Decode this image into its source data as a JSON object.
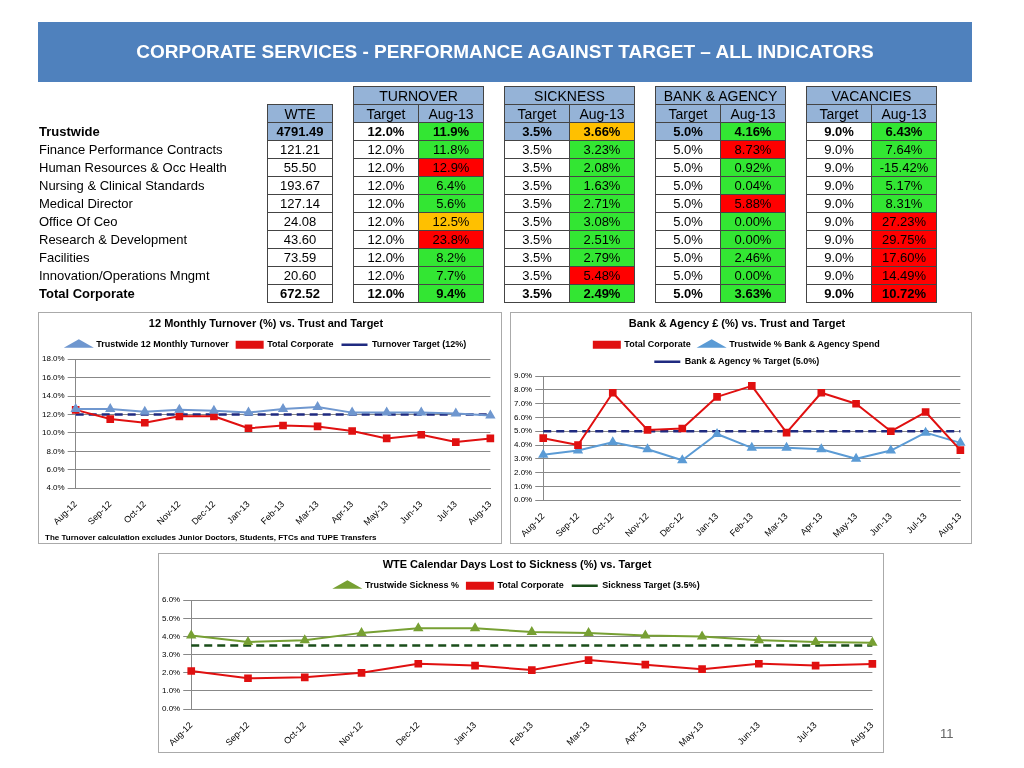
{
  "chart_data": [
    {
      "type": "heatmap",
      "title": "CORPORATE SERVICES -  PERFORMANCE AGAINST TARGET – ALL INDICATORS",
      "categories": [
        "WTE",
        "Target",
        "Aug-13",
        "Target",
        "Aug-13",
        "Target",
        "Aug-13",
        "Target",
        "Aug-13"
      ],
      "y_categories": [
        "Trustwide",
        "Finance Performance Contracts",
        "Human Resources & Occ Health",
        "Nursing & Clinical Standards",
        "Medical Director",
        "Office Of Ceo",
        "Research & Development",
        "Facilities",
        "Innovation/Operations Mngmt",
        "Total Corporate"
      ],
      "cells": [
        [
          4791.49,
          12.0,
          11.9,
          3.5,
          3.66,
          5.0,
          4.16,
          9.0,
          6.43
        ],
        [
          121.21,
          12.0,
          11.8,
          3.5,
          3.23,
          5.0,
          8.73,
          9.0,
          7.64
        ],
        [
          55.5,
          12.0,
          12.9,
          3.5,
          2.08,
          5.0,
          0.92,
          9.0,
          -15.42
        ],
        [
          193.67,
          12.0,
          6.4,
          3.5,
          1.63,
          5.0,
          0.04,
          9.0,
          5.17
        ],
        [
          127.14,
          12.0,
          5.6,
          3.5,
          2.71,
          5.0,
          5.88,
          9.0,
          8.31
        ],
        [
          24.08,
          12.0,
          12.5,
          3.5,
          3.08,
          5.0,
          0.0,
          9.0,
          27.23
        ],
        [
          43.6,
          12.0,
          23.8,
          3.5,
          2.51,
          5.0,
          0.0,
          9.0,
          29.75
        ],
        [
          73.59,
          12.0,
          8.2,
          3.5,
          2.79,
          5.0,
          2.46,
          9.0,
          17.6
        ],
        [
          20.6,
          12.0,
          7.7,
          3.5,
          5.48,
          5.0,
          0.0,
          9.0,
          14.49
        ],
        [
          672.52,
          12.0,
          9.4,
          3.5,
          2.49,
          5.0,
          3.63,
          9.0,
          10.72
        ]
      ],
      "cell_labels": [
        [
          "4791.49",
          "12.0%",
          "11.9%",
          "3.5%",
          "3.66%",
          "5.0%",
          "4.16%",
          "9.0%",
          "6.43%"
        ],
        [
          "121.21",
          "12.0%",
          "11.8%",
          "3.5%",
          "3.23%",
          "5.0%",
          "8.73%",
          "9.0%",
          "7.64%"
        ],
        [
          "55.50",
          "12.0%",
          "12.9%",
          "3.5%",
          "2.08%",
          "5.0%",
          "0.92%",
          "9.0%",
          "-15.42%"
        ],
        [
          "193.67",
          "12.0%",
          "6.4%",
          "3.5%",
          "1.63%",
          "5.0%",
          "0.04%",
          "9.0%",
          "5.17%"
        ],
        [
          "127.14",
          "12.0%",
          "5.6%",
          "3.5%",
          "2.71%",
          "5.0%",
          "5.88%",
          "9.0%",
          "8.31%"
        ],
        [
          "24.08",
          "12.0%",
          "12.5%",
          "3.5%",
          "3.08%",
          "5.0%",
          "0.00%",
          "9.0%",
          "27.23%"
        ],
        [
          "43.60",
          "12.0%",
          "23.8%",
          "3.5%",
          "2.51%",
          "5.0%",
          "0.00%",
          "9.0%",
          "29.75%"
        ],
        [
          "73.59",
          "12.0%",
          "8.2%",
          "3.5%",
          "2.79%",
          "5.0%",
          "2.46%",
          "9.0%",
          "17.60%"
        ],
        [
          "20.60",
          "12.0%",
          "7.7%",
          "3.5%",
          "5.48%",
          "5.0%",
          "0.00%",
          "9.0%",
          "14.49%"
        ],
        [
          "672.52",
          "12.0%",
          "9.4%",
          "3.5%",
          "2.49%",
          "5.0%",
          "3.63%",
          "9.0%",
          "10.72%"
        ]
      ],
      "colors": [
        [
          "#95b3d7",
          null,
          "#33e633",
          "#95b3d7",
          "#ffc000",
          "#95b3d7",
          "#33e633",
          null,
          "#33e633"
        ],
        [
          null,
          null,
          "#33e633",
          null,
          "#33e633",
          null,
          "#ff0000",
          null,
          "#33e633"
        ],
        [
          null,
          null,
          "#ff0000",
          null,
          "#33e633",
          null,
          "#33e633",
          null,
          "#33e633"
        ],
        [
          null,
          null,
          "#33e633",
          null,
          "#33e633",
          null,
          "#33e633",
          null,
          "#33e633"
        ],
        [
          null,
          null,
          "#33e633",
          null,
          "#33e633",
          null,
          "#ff0000",
          null,
          "#33e633"
        ],
        [
          null,
          null,
          "#ffc000",
          null,
          "#33e633",
          null,
          "#33e633",
          null,
          "#ff0000"
        ],
        [
          null,
          null,
          "#ff0000",
          null,
          "#33e633",
          null,
          "#33e633",
          null,
          "#ff0000"
        ],
        [
          null,
          null,
          "#33e633",
          null,
          "#33e633",
          null,
          "#33e633",
          null,
          "#ff0000"
        ],
        [
          null,
          null,
          "#33e633",
          null,
          "#ff0000",
          null,
          "#33e633",
          null,
          "#ff0000"
        ],
        [
          null,
          null,
          "#33e633",
          null,
          "#33e633",
          null,
          "#33e633",
          null,
          "#ff0000"
        ]
      ],
      "annotations": [
        "TURNOVER",
        "SICKNESS",
        "BANK & AGENCY",
        "VACANCIES",
        "11"
      ]
    },
    {
      "type": "line",
      "title": "12 Monthly Turnover (%) vs. Trust and Target",
      "categories": [
        "Aug-12",
        "Sep-12",
        "Oct-12",
        "Nov-12",
        "Dec-12",
        "Jan-13",
        "Feb-13",
        "Mar-13",
        "Apr-13",
        "May-13",
        "Jun-13",
        "Jul-13",
        "Aug-13"
      ],
      "series": [
        {
          "name": "Turnover Target (12%)",
          "color": "#1f2a80",
          "marker": "none",
          "line_style": "dashed",
          "values": [
            12,
            12,
            12,
            12,
            12,
            12,
            12,
            12,
            12,
            12,
            12,
            12,
            12
          ]
        },
        {
          "name": "Total Corporate",
          "color": "#e01010",
          "marker": "square",
          "values": [
            12.5,
            11.5,
            11.1,
            11.8,
            11.8,
            10.5,
            10.8,
            10.7,
            10.2,
            9.4,
            9.8,
            9.0,
            9.4
          ]
        },
        {
          "name": "Trustwide 12 Monthly Turnover",
          "color": "#6f97cf",
          "marker": "triangle",
          "values": [
            12.6,
            12.6,
            12.3,
            12.5,
            12.4,
            12.2,
            12.6,
            12.8,
            12.2,
            12.2,
            12.2,
            12.1,
            11.9
          ]
        }
      ],
      "ylim": [
        4,
        18
      ],
      "yticks": [
        {
          "value": 4,
          "label": "4.0%"
        },
        {
          "value": 6,
          "label": "6.0%"
        },
        {
          "value": 8,
          "label": "8.0%"
        },
        {
          "value": 10,
          "label": "10.0%"
        },
        {
          "value": 12,
          "label": "12.0%"
        },
        {
          "value": 14,
          "label": "14.0%"
        },
        {
          "value": 16,
          "label": "16.0%"
        },
        {
          "value": 18,
          "label": "18.0%"
        }
      ],
      "grid": "y",
      "legend": "top",
      "annotations": [
        "The Turnover calculation excludes Junior Doctors, Students, FTCs and TUPE Transfers"
      ]
    },
    {
      "type": "line",
      "title": "Bank & Agency £ (%) vs. Trust and Target",
      "categories": [
        "Aug-12",
        "Sep-12",
        "Oct-12",
        "Nov-12",
        "Dec-12",
        "Jan-13",
        "Feb-13",
        "Mar-13",
        "Apr-13",
        "May-13",
        "Jun-13",
        "Jul-13",
        "Aug-13"
      ],
      "series": [
        {
          "name": "Bank & Agency % Target (5.0%)",
          "color": "#1f2a80",
          "marker": "none",
          "line_style": "dashed",
          "values": [
            5,
            5,
            5,
            5,
            5,
            5,
            5,
            5,
            5,
            5,
            5,
            5,
            5
          ]
        },
        {
          "name": "Trustwide % Bank & Agency Spend",
          "color": "#5b9bd5",
          "marker": "triangle",
          "values": [
            3.3,
            3.6,
            4.2,
            3.7,
            2.9,
            4.8,
            3.8,
            3.8,
            3.7,
            3.0,
            3.6,
            4.9,
            4.16
          ]
        },
        {
          "name": "Total Corporate",
          "color": "#e01010",
          "marker": "square",
          "values": [
            4.5,
            4.0,
            7.8,
            5.1,
            5.2,
            7.5,
            8.3,
            4.9,
            7.8,
            7.0,
            5.0,
            6.4,
            3.63
          ]
        }
      ],
      "ylim": [
        0,
        9
      ],
      "yticks": [
        {
          "value": 0,
          "label": "0.0%"
        },
        {
          "value": 1,
          "label": "1.0%"
        },
        {
          "value": 2,
          "label": "2.0%"
        },
        {
          "value": 3,
          "label": "3.0%"
        },
        {
          "value": 4,
          "label": "4.0%"
        },
        {
          "value": 5,
          "label": "5.0%"
        },
        {
          "value": 6,
          "label": "6.0%"
        },
        {
          "value": 7,
          "label": "7.0%"
        },
        {
          "value": 8,
          "label": "8.0%"
        },
        {
          "value": 9,
          "label": "9.0%"
        }
      ],
      "grid": "y",
      "legend": "top"
    },
    {
      "type": "line",
      "title": "WTE Calendar Days Lost to Sickness (%) vs. Target",
      "categories": [
        "Aug-12",
        "Sep-12",
        "Oct-12",
        "Nov-12",
        "Dec-12",
        "Jan-13",
        "Feb-13",
        "Mar-13",
        "Apr-13",
        "May-13",
        "Jun-13",
        "Jul-13",
        "Aug-13"
      ],
      "series": [
        {
          "name": "Sickness Target (3.5%)",
          "color": "#1a4d1a",
          "marker": "none",
          "line_style": "dashed",
          "values": [
            3.5,
            3.5,
            3.5,
            3.5,
            3.5,
            3.5,
            3.5,
            3.5,
            3.5,
            3.5,
            3.5,
            3.5,
            3.5
          ]
        },
        {
          "name": "Total Corporate",
          "color": "#e01010",
          "marker": "square",
          "values": [
            2.1,
            1.7,
            1.75,
            2.0,
            2.5,
            2.4,
            2.15,
            2.7,
            2.45,
            2.2,
            2.5,
            2.4,
            2.49
          ]
        },
        {
          "name": "Trustwide Sickness %",
          "color": "#77a033",
          "marker": "triangle",
          "values": [
            4.05,
            3.7,
            3.8,
            4.2,
            4.45,
            4.45,
            4.25,
            4.2,
            4.05,
            4.0,
            3.8,
            3.7,
            3.66
          ]
        }
      ],
      "ylim": [
        0,
        6
      ],
      "yticks": [
        {
          "value": 0,
          "label": "0.0%"
        },
        {
          "value": 1,
          "label": "1.0%"
        },
        {
          "value": 2,
          "label": "2.0%"
        },
        {
          "value": 3,
          "label": "3.0%"
        },
        {
          "value": 4,
          "label": "4.0%"
        },
        {
          "value": 5,
          "label": "5.0%"
        },
        {
          "value": 6,
          "label": "6.0%"
        }
      ],
      "grid": "y",
      "legend": "top"
    }
  ]
}
